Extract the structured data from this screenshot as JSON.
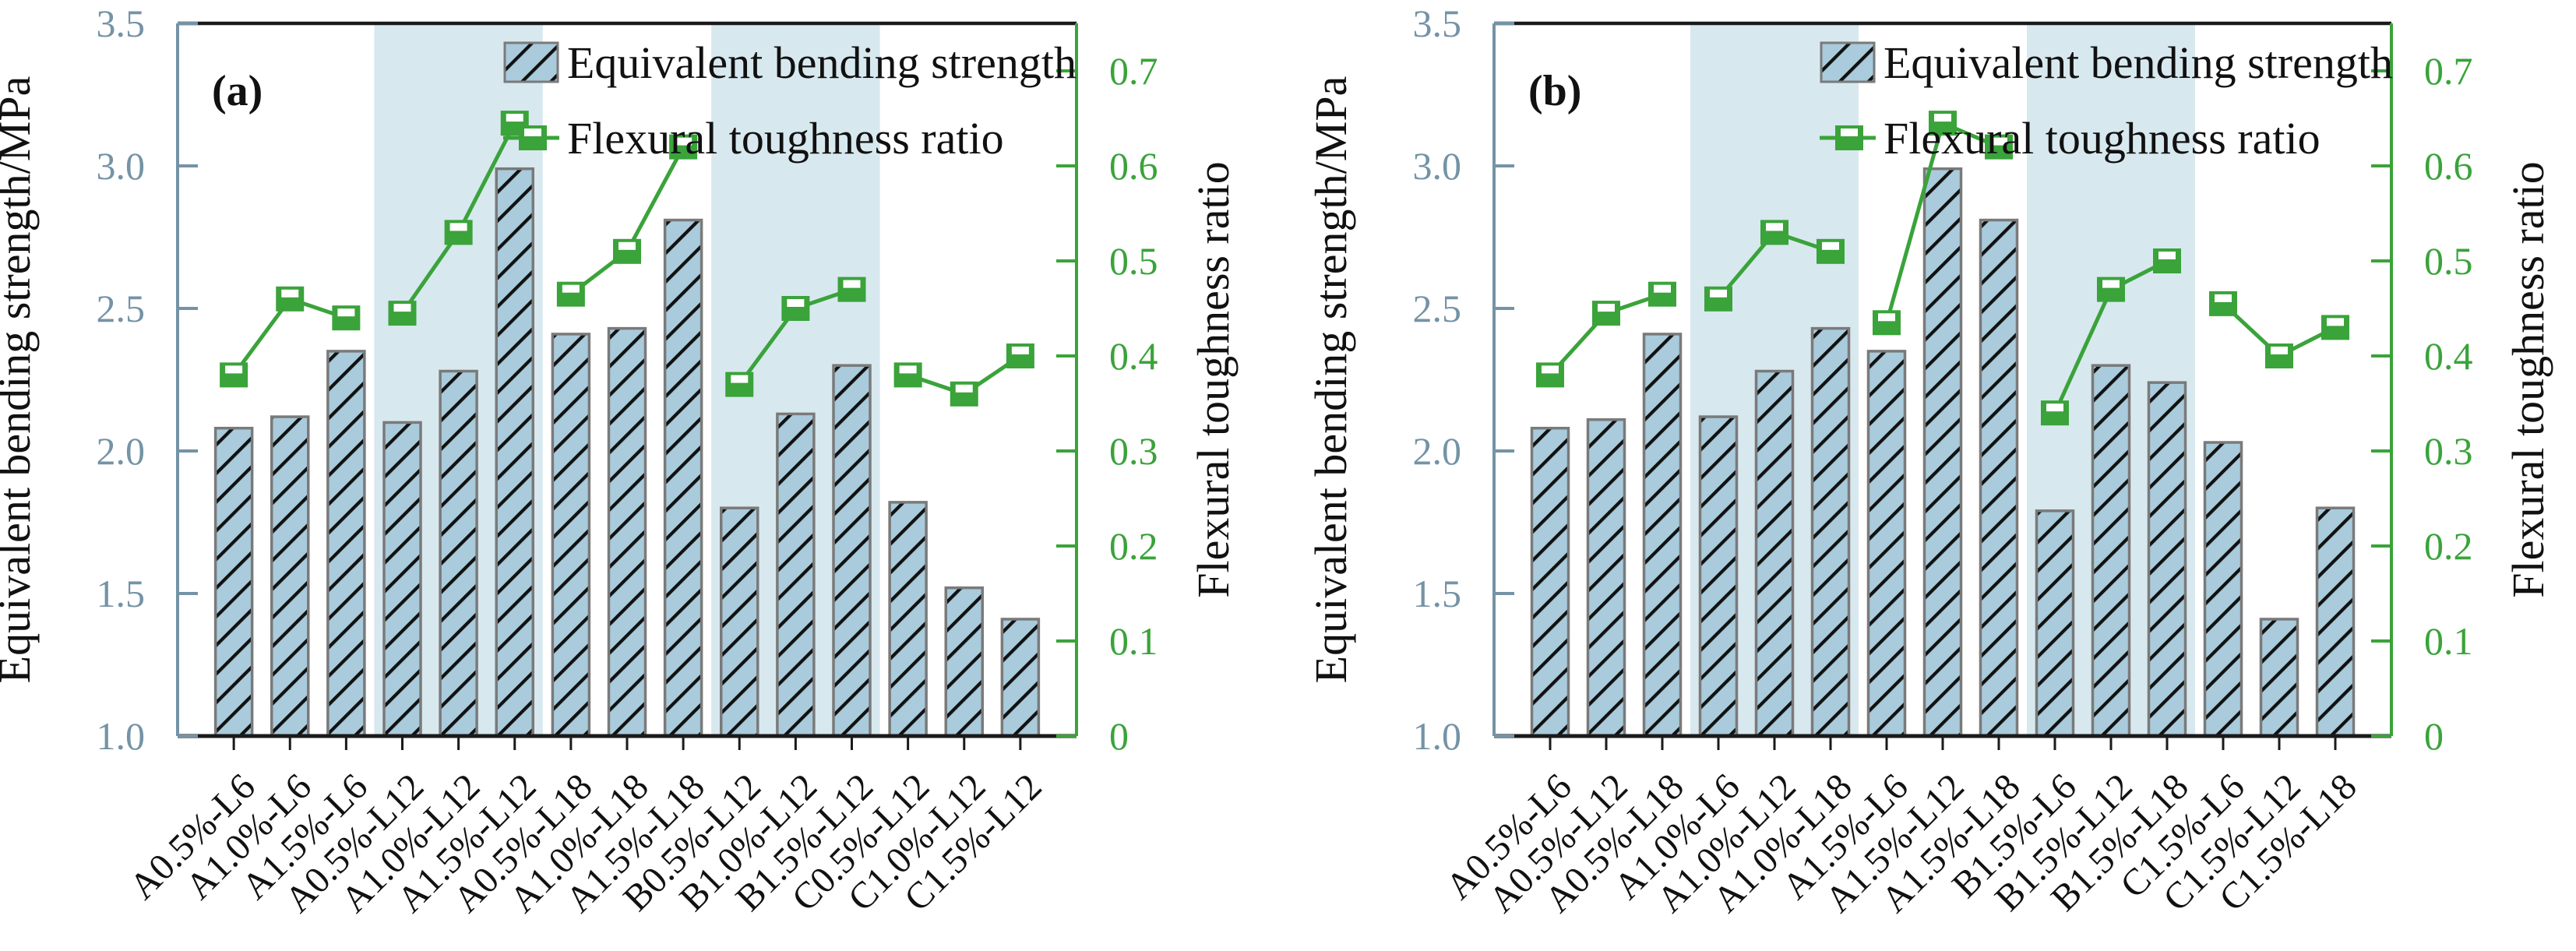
{
  "figure": {
    "background": "#ffffff",
    "panels": [
      "(a)",
      "(b)"
    ]
  },
  "style": {
    "bar_fill": "#a9cbdc",
    "bar_edge": "#7a7a7a",
    "hatch_color": "#111111",
    "line_color": "#3aa33a",
    "band_color": "#d8e8ef",
    "left_axis_color": "#7493a6",
    "black_axis_color": "#1a1a1a",
    "text_color": "#111111"
  },
  "chart_data": [
    {
      "id": "panel-a",
      "type": "bar",
      "panel_label": "(a)",
      "categories": [
        "A0.5%-L6",
        "A1.0%-L6",
        "A1.5%-L6",
        "A0.5%-L12",
        "A1.0%-L12",
        "A1.5%-L12",
        "A0.5%-L18",
        "A1.0%-L18",
        "A1.5%-L18",
        "B0.5%-L12",
        "B1.0%-L12",
        "B1.5%-L12",
        "C0.5%-L12",
        "C1.0%-L12",
        "C1.5%-L12"
      ],
      "series": [
        {
          "name": "Equivalent bending strength",
          "type": "bar",
          "axis": "left",
          "values": [
            2.08,
            2.12,
            2.35,
            2.1,
            2.28,
            2.99,
            2.41,
            2.43,
            2.81,
            1.8,
            2.13,
            2.3,
            1.82,
            1.52,
            1.41
          ]
        },
        {
          "name": "Flexural toughness ratio",
          "type": "line",
          "axis": "right",
          "segment_size": 3,
          "values": [
            0.38,
            0.46,
            0.44,
            0.445,
            0.53,
            0.645,
            0.465,
            0.51,
            0.62,
            0.37,
            0.45,
            0.47,
            0.38,
            0.36,
            0.4
          ]
        }
      ],
      "left_axis": {
        "label": "Equivalent bending strength/MPa",
        "min": 1.0,
        "max": 3.5,
        "ticks": [
          "1.0",
          "1.5",
          "2.0",
          "2.5",
          "3.0",
          "3.5"
        ]
      },
      "right_axis": {
        "label": "Flexural toughness ratio",
        "min": 0,
        "tick_max": 0.7,
        "ticks": [
          "0",
          "0.1",
          "0.2",
          "0.3",
          "0.4",
          "0.5",
          "0.6",
          "0.7"
        ]
      },
      "highlight_bands": [
        [
          4,
          6
        ],
        [
          10,
          12
        ]
      ],
      "legend": [
        "Equivalent bending strength",
        "Flexural toughness ratio"
      ],
      "grid": false,
      "legend_position": "top-center-inside"
    },
    {
      "id": "panel-b",
      "type": "bar",
      "panel_label": "(b)",
      "categories": [
        "A0.5%-L6",
        "A0.5%-L12",
        "A0.5%-L18",
        "A1.0%-L6",
        "A1.0%-L12",
        "A1.0%-L18",
        "A1.5%-L6",
        "A1.5%-L12",
        "A1.5%-L18",
        "B1.5%-L6",
        "B1.5%-L12",
        "B1.5%-L18",
        "C1.5%-L6",
        "C1.5%-L12",
        "C1.5%-L18"
      ],
      "series": [
        {
          "name": "Equivalent bending strength",
          "type": "bar",
          "axis": "left",
          "values": [
            2.08,
            2.11,
            2.41,
            2.12,
            2.28,
            2.43,
            2.35,
            2.99,
            2.81,
            1.79,
            2.3,
            2.24,
            2.03,
            1.41,
            1.8
          ]
        },
        {
          "name": "Flexural toughness ratio",
          "type": "line",
          "axis": "right",
          "segment_size": 3,
          "values": [
            0.38,
            0.445,
            0.465,
            0.46,
            0.53,
            0.51,
            0.435,
            0.645,
            0.62,
            0.34,
            0.47,
            0.5,
            0.455,
            0.4,
            0.43
          ]
        }
      ],
      "left_axis": {
        "label": "Equivalent bending strength/MPa",
        "min": 1.0,
        "max": 3.5,
        "ticks": [
          "1.0",
          "1.5",
          "2.0",
          "2.5",
          "3.0",
          "3.5"
        ]
      },
      "right_axis": {
        "label": "Flexural toughness ratio",
        "min": 0,
        "tick_max": 0.7,
        "ticks": [
          "0",
          "0.1",
          "0.2",
          "0.3",
          "0.4",
          "0.5",
          "0.6",
          "0.7"
        ]
      },
      "highlight_bands": [
        [
          4,
          6
        ],
        [
          10,
          12
        ]
      ],
      "legend": [
        "Equivalent bending strength",
        "Flexural toughness ratio"
      ],
      "grid": false,
      "legend_position": "top-center-inside"
    }
  ]
}
